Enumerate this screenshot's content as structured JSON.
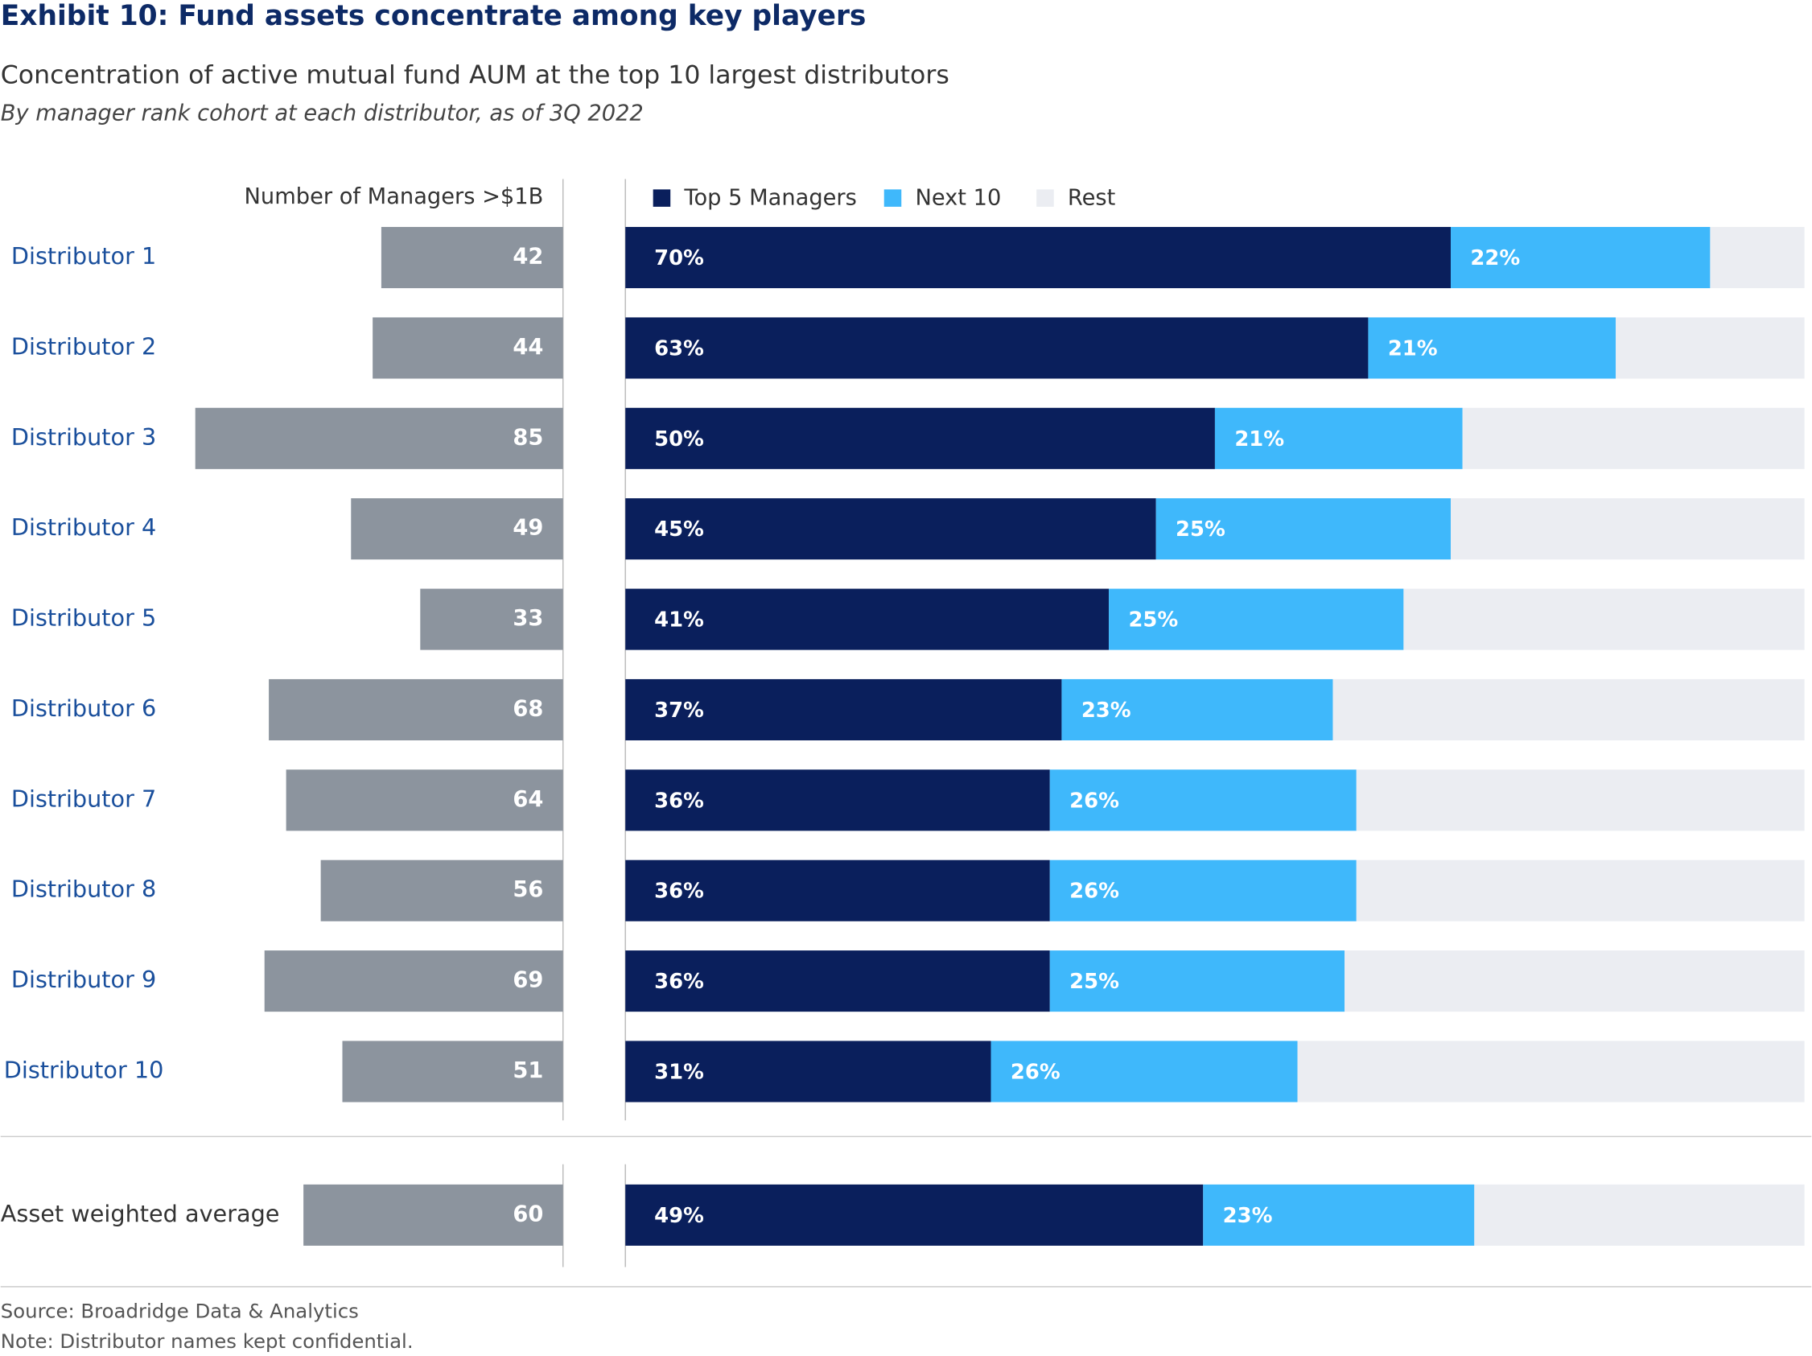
{
  "header": {
    "title": "Exhibit 10:  Fund assets concentrate among key players",
    "subtitle": "Concentration of active mutual fund AUM at the top 10 largest distributors",
    "note": "By manager rank cohort at each distributor, as of 3Q 2022"
  },
  "chart_data": [
    {
      "type": "bar",
      "orientation": "horizontal-left",
      "axis_label": "Number of Managers >$1B",
      "categories": [
        "Distributor 1",
        "Distributor 2",
        "Distributor 3",
        "Distributor 4",
        "Distributor 5",
        "Distributor 6",
        "Distributor 7",
        "Distributor 8",
        "Distributor 9",
        "Distributor 10",
        "Asset weighted average"
      ],
      "values": [
        42,
        44,
        85,
        49,
        33,
        68,
        64,
        56,
        69,
        51,
        60
      ],
      "color": "#8c949e",
      "xlim": [
        0,
        130
      ]
    },
    {
      "type": "stacked-bar",
      "orientation": "horizontal",
      "xlim": [
        0,
        100
      ],
      "series": [
        {
          "name": "Top 5 Managers",
          "color": "#0a1f5c",
          "values": [
            70,
            63,
            50,
            45,
            41,
            37,
            36,
            36,
            36,
            31,
            49
          ],
          "value_labels": [
            "70%",
            "63%",
            "50%",
            "45%",
            "41%",
            "37%",
            "36%",
            "36%",
            "36%",
            "31%",
            "49%"
          ]
        },
        {
          "name": "Next 10",
          "color": "#3fb8fb",
          "values": [
            22,
            21,
            21,
            25,
            25,
            23,
            26,
            26,
            25,
            26,
            23
          ],
          "value_labels": [
            "22%",
            "21%",
            "21%",
            "25%",
            "25%",
            "23%",
            "26%",
            "26%",
            "25%",
            "26%",
            "23%"
          ]
        },
        {
          "name": "Rest",
          "color": "#ebedf2",
          "values": [
            8,
            16,
            29,
            30,
            34,
            40,
            38,
            38,
            39,
            43,
            28
          ]
        }
      ]
    }
  ],
  "footer": {
    "source": "Source: Broadridge Data & Analytics",
    "note": "Note: Distributor names kept confidential."
  }
}
